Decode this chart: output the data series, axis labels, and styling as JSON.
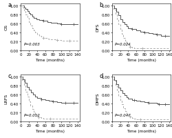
{
  "panels": [
    {
      "label": "a",
      "ylabel": "OS",
      "pvalue": "P=0.003",
      "solid": {
        "times": [
          0,
          8,
          12,
          16,
          20,
          24,
          28,
          32,
          38,
          45,
          55,
          65,
          75,
          90,
          100,
          110,
          120,
          130,
          140
        ],
        "surv": [
          1.0,
          0.96,
          0.92,
          0.88,
          0.84,
          0.8,
          0.76,
          0.73,
          0.7,
          0.68,
          0.66,
          0.64,
          0.62,
          0.6,
          0.59,
          0.59,
          0.59,
          0.59,
          0.59
        ],
        "ticks": [
          55,
          100,
          130
        ]
      },
      "dashed": {
        "times": [
          0,
          5,
          8,
          12,
          16,
          20,
          24,
          28,
          32,
          36,
          40,
          45,
          50,
          55,
          60,
          65,
          70,
          80,
          90,
          100,
          110,
          120,
          130,
          140
        ],
        "surv": [
          1.0,
          0.95,
          0.88,
          0.8,
          0.72,
          0.64,
          0.56,
          0.5,
          0.45,
          0.4,
          0.36,
          0.33,
          0.3,
          0.28,
          0.27,
          0.26,
          0.25,
          0.24,
          0.23,
          0.22,
          0.22,
          0.22,
          0.22,
          0.22
        ],
        "ticks": [
          55,
          90,
          120
        ]
      },
      "xlim": [
        0,
        145
      ],
      "ylim": [
        0.0,
        1.05
      ],
      "xticks": [
        0,
        20,
        40,
        60,
        80,
        100,
        120,
        140
      ],
      "yticks": [
        0.0,
        0.2,
        0.4,
        0.6,
        0.8,
        1.0
      ]
    },
    {
      "label": "b",
      "ylabel": "DFS",
      "pvalue": "P=0.024",
      "solid": {
        "times": [
          0,
          5,
          10,
          15,
          20,
          25,
          30,
          35,
          40,
          50,
          60,
          70,
          80,
          90,
          100,
          110,
          120,
          130,
          140
        ],
        "surv": [
          1.0,
          0.94,
          0.86,
          0.78,
          0.7,
          0.63,
          0.58,
          0.54,
          0.5,
          0.47,
          0.44,
          0.42,
          0.4,
          0.38,
          0.37,
          0.36,
          0.32,
          0.32,
          0.32
        ],
        "ticks": [
          50,
          80,
          110,
          130
        ]
      },
      "dashed": {
        "times": [
          0,
          4,
          8,
          12,
          16,
          20,
          24,
          28,
          32,
          36,
          40,
          45,
          50,
          55,
          60,
          70,
          80,
          90,
          100,
          110,
          120,
          130,
          140
        ],
        "surv": [
          1.0,
          0.92,
          0.82,
          0.7,
          0.58,
          0.47,
          0.37,
          0.28,
          0.21,
          0.15,
          0.11,
          0.08,
          0.06,
          0.05,
          0.04,
          0.04,
          0.04,
          0.04,
          0.04,
          0.04,
          0.04,
          0.04,
          0.04
        ],
        "ticks": [
          45,
          75
        ]
      },
      "xlim": [
        0,
        145
      ],
      "ylim": [
        0.0,
        1.05
      ],
      "xticks": [
        0,
        20,
        40,
        60,
        80,
        100,
        120,
        140
      ],
      "yticks": [
        0.0,
        0.2,
        0.4,
        0.6,
        0.8,
        1.0
      ]
    },
    {
      "label": "c",
      "ylabel": "LRFS",
      "pvalue": "P=0.012",
      "solid": {
        "times": [
          0,
          5,
          10,
          15,
          20,
          25,
          30,
          35,
          40,
          50,
          60,
          70,
          80,
          90,
          100,
          110,
          120,
          130,
          140
        ],
        "surv": [
          1.0,
          0.94,
          0.86,
          0.78,
          0.71,
          0.65,
          0.6,
          0.56,
          0.53,
          0.5,
          0.48,
          0.46,
          0.44,
          0.43,
          0.42,
          0.42,
          0.41,
          0.41,
          0.41
        ],
        "ticks": [
          50,
          80,
          110,
          130
        ]
      },
      "dashed": {
        "times": [
          0,
          4,
          8,
          12,
          16,
          20,
          24,
          28,
          32,
          36,
          40,
          44,
          50,
          55,
          60,
          70,
          80,
          90,
          100,
          110,
          120,
          130,
          140
        ],
        "surv": [
          1.0,
          0.92,
          0.8,
          0.67,
          0.55,
          0.44,
          0.35,
          0.27,
          0.21,
          0.16,
          0.12,
          0.09,
          0.07,
          0.06,
          0.06,
          0.06,
          0.06,
          0.06,
          0.06,
          0.06,
          0.06,
          0.06,
          0.06
        ],
        "ticks": [
          44,
          72
        ]
      },
      "xlim": [
        0,
        145
      ],
      "ylim": [
        0.0,
        1.05
      ],
      "xticks": [
        0,
        20,
        40,
        60,
        80,
        100,
        120,
        140
      ],
      "yticks": [
        0.0,
        0.2,
        0.4,
        0.6,
        0.8,
        1.0
      ]
    },
    {
      "label": "d",
      "ylabel": "DMFS",
      "pvalue": "P=0.047",
      "solid": {
        "times": [
          0,
          5,
          10,
          15,
          20,
          25,
          30,
          35,
          40,
          50,
          60,
          70,
          80,
          90,
          100,
          110,
          115,
          120,
          130,
          140
        ],
        "surv": [
          1.0,
          0.93,
          0.84,
          0.76,
          0.69,
          0.63,
          0.58,
          0.54,
          0.51,
          0.48,
          0.46,
          0.44,
          0.43,
          0.42,
          0.41,
          0.4,
          0.38,
          0.38,
          0.38,
          0.38
        ],
        "ticks": [
          55,
          90,
          115,
          130
        ]
      },
      "dashed": {
        "times": [
          0,
          4,
          8,
          12,
          16,
          20,
          24,
          28,
          32,
          36,
          40,
          44,
          50,
          55,
          60,
          65,
          70,
          80,
          90,
          100,
          110,
          120,
          130,
          140
        ],
        "surv": [
          1.0,
          0.92,
          0.81,
          0.69,
          0.57,
          0.47,
          0.38,
          0.3,
          0.23,
          0.17,
          0.13,
          0.1,
          0.07,
          0.06,
          0.05,
          0.05,
          0.05,
          0.05,
          0.05,
          0.05,
          0.05,
          0.05,
          0.05,
          0.05
        ],
        "ticks": [
          44,
          70
        ]
      },
      "xlim": [
        0,
        145
      ],
      "ylim": [
        0.0,
        1.05
      ],
      "xticks": [
        0,
        20,
        40,
        60,
        80,
        100,
        120,
        140
      ],
      "yticks": [
        0.0,
        0.2,
        0.4,
        0.6,
        0.8,
        1.0
      ]
    }
  ],
  "solid_color": "#555555",
  "dashed_color": "#aaaaaa",
  "xlabel": "Time (months)",
  "background_color": "#ffffff",
  "linewidth": 0.7,
  "fontsize": 4.5
}
